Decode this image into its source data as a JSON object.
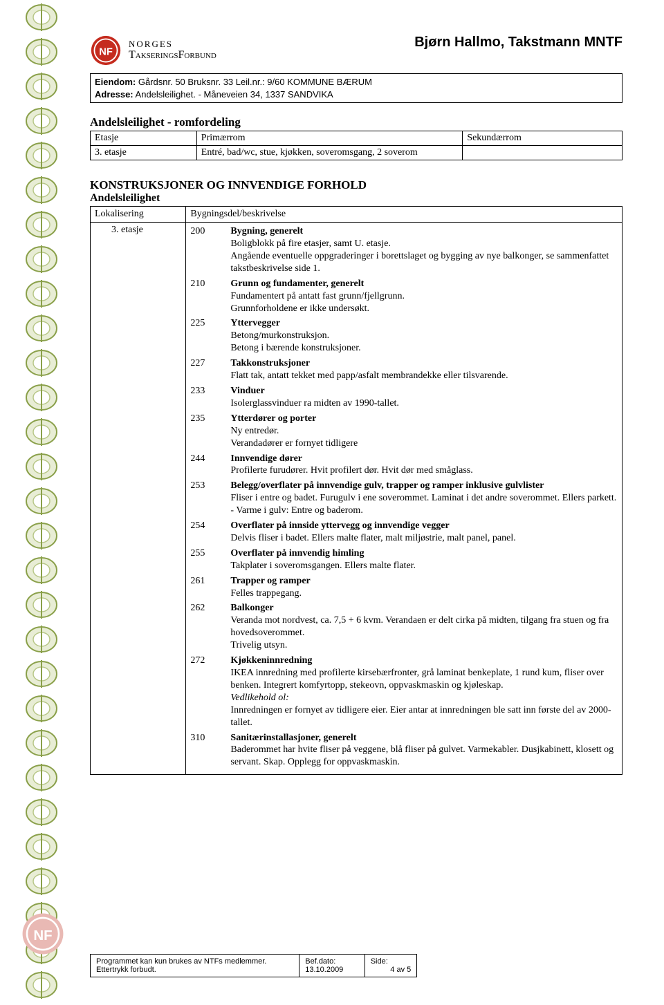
{
  "colors": {
    "chain_stroke": "#8aa04a",
    "chain_fill": "#d7e0b8",
    "logo_red": "#c52b1e",
    "text": "#000000",
    "page_bg": "#ffffff"
  },
  "header": {
    "org_line1": "NORGES",
    "org_line2": "TakseringsForbund",
    "right": "Bjørn Hallmo, Takstmann MNTF"
  },
  "info": {
    "eiendom_label": "Eiendom:",
    "eiendom_value": "Gårdsnr. 50  Bruksnr. 33  Leil.nr.: 9/60  KOMMUNE BÆRUM",
    "adresse_label": "Adresse:",
    "adresse_value": "Andelsleilighet. - Måneveien 34, 1337 SANDVIKA"
  },
  "romfordeling": {
    "title": "Andelsleilighet - romfordeling",
    "headers": [
      "Etasje",
      "Primærrom",
      "Sekundærrom"
    ],
    "rows": [
      [
        "3. etasje",
        "Entré, bad/wc, stue, kjøkken, soveromsgang, 2 soverom",
        ""
      ]
    ]
  },
  "konstruksjoner": {
    "title": "KONSTRUKSJONER OG INNVENDIGE FORHOLD",
    "subtitle": "Andelsleilighet",
    "col_labels": [
      "Lokalisering",
      "Bygningsdel/beskrivelse"
    ],
    "lokalisering": "3. etasje",
    "items": [
      {
        "code": "200",
        "title": "Bygning, generelt",
        "lines": [
          "Boligblokk på fire etasjer, samt U. etasje.",
          "Angående eventuelle oppgraderinger i borettslaget og bygging av nye balkonger, se sammenfattet takstbeskrivelse side 1."
        ]
      },
      {
        "code": "210",
        "title": "Grunn og fundamenter, generelt",
        "lines": [
          "Fundamentert på antatt fast grunn/fjellgrunn.",
          "Grunnforholdene er ikke undersøkt."
        ]
      },
      {
        "code": "225",
        "title": "Yttervegger",
        "lines": [
          "Betong/murkonstruksjon.",
          "Betong i bærende konstruksjoner."
        ]
      },
      {
        "code": "227",
        "title": "Takkonstruksjoner",
        "lines": [
          "Flatt tak, antatt tekket med papp/asfalt membrandekke eller tilsvarende."
        ]
      },
      {
        "code": "233",
        "title": "Vinduer",
        "lines": [
          "Isolerglassvinduer ra midten av 1990-tallet."
        ]
      },
      {
        "code": "235",
        "title": "Ytterdører og porter",
        "lines": [
          "Ny entredør.",
          "Verandadører er fornyet tidligere"
        ]
      },
      {
        "code": "244",
        "title": "Innvendige dører",
        "lines": [
          "Profilerte furudører. Hvit profilert dør. Hvit dør med småglass."
        ]
      },
      {
        "code": "253",
        "title": "Belegg/overflater på innvendige gulv, trapper og ramper inklusive gulvlister",
        "lines": [
          "Fliser i entre og badet. Furugulv i ene soverommet. Laminat i det andre soverommet. Ellers parkett.",
          "- Varme i gulv: Entre og baderom."
        ]
      },
      {
        "code": "254",
        "title": "Overflater på innside yttervegg og innvendige vegger",
        "lines": [
          "Delvis fliser i badet. Ellers malte flater, malt miljøstrie, malt panel, panel."
        ]
      },
      {
        "code": "255",
        "title": "Overflater på innvendig himling",
        "lines": [
          "Takplater i soveromsgangen. Ellers malte flater."
        ]
      },
      {
        "code": "261",
        "title": "Trapper og ramper",
        "lines": [
          "Felles trappegang."
        ]
      },
      {
        "code": "262",
        "title": "Balkonger",
        "lines": [
          "Veranda mot nordvest, ca. 7,5 + 6 kvm. Verandaen er delt cirka på midten, tilgang fra stuen og fra hovedsoverommet.",
          "Trivelig utsyn."
        ]
      },
      {
        "code": "272",
        "title": "Kjøkkeninnredning",
        "lines": [
          "IKEA innredning med profilerte kirsebærfronter, grå laminat benkeplate, 1 rund kum, fliser over benken. Integrert komfyrtopp, stekeovn, oppvaskmaskin og kjøleskap."
        ],
        "vedlikehold_label": "Vedlikehold ol:",
        "vedlikehold_lines": [
          "Innredningen er fornyet av tidligere eier. Eier antar at innredningen ble satt inn første del av 2000-tallet."
        ]
      },
      {
        "code": "310",
        "title": "Sanitærinstallasjoner, generelt",
        "lines": [
          "Baderommet har hvite fliser på veggene, blå fliser på gulvet. Varmekabler. Dusjkabinett, klosett og servant. Skap. Opplegg for oppvaskmaskin."
        ]
      }
    ]
  },
  "footer": {
    "disclaimer": "Programmet kan kun brukes av NTFs medlemmer. Ettertrykk forbudt.",
    "befdato_label": "Bef.dato:",
    "befdato_value": "13.10.2009",
    "side_label": "Side:",
    "side_value": "4 av 5"
  }
}
